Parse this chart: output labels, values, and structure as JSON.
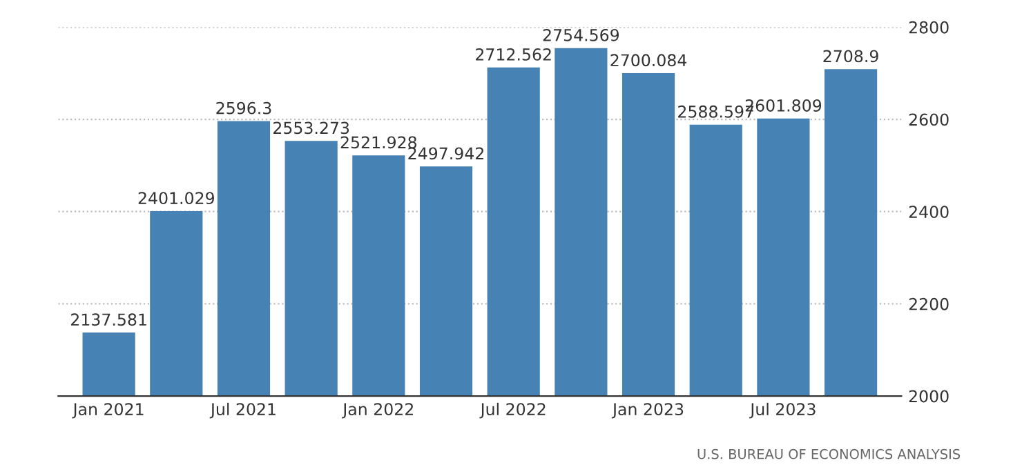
{
  "chart_data": {
    "type": "bar",
    "categories": [
      "Jan 2021",
      null,
      "Jul 2021",
      null,
      "Jan 2022",
      null,
      "Jul 2022",
      null,
      "Jan 2023",
      null,
      "Jul 2023",
      null
    ],
    "values": [
      2137.581,
      2401.029,
      2596.3,
      2553.273,
      2521.928,
      2497.942,
      2712.562,
      2754.569,
      2700.084,
      2588.597,
      2601.809,
      2708.9
    ],
    "color": "#4682b4",
    "ylim": [
      2000,
      2800
    ],
    "yticks": [
      2000,
      2200,
      2400,
      2600,
      2800
    ],
    "grid": "y",
    "data_labels": true,
    "annotations": [
      "U.S. BUREAU OF ECONOMICS ANALYSIS"
    ]
  }
}
